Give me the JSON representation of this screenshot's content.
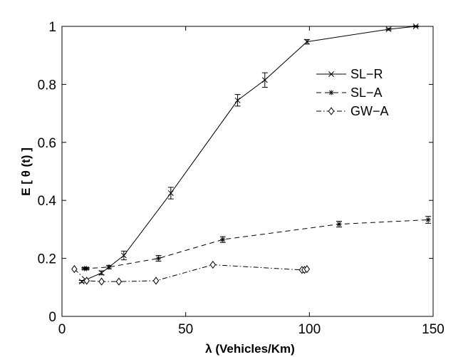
{
  "chart_data": {
    "type": "line",
    "title": "",
    "xlabel": "λ (Vehicles/Km)",
    "ylabel": "E [ θ (t) ]",
    "xlim": [
      0,
      150
    ],
    "ylim": [
      0,
      1
    ],
    "xticks": [
      0,
      50,
      100,
      150
    ],
    "yticks": [
      0,
      0.2,
      0.4,
      0.6,
      0.8,
      1
    ],
    "xtick_labels": [
      "0",
      "50",
      "100",
      "150"
    ],
    "ytick_labels": [
      "0",
      "0.2",
      "0.4",
      "0.6",
      "0.8",
      "1"
    ],
    "grid": false,
    "legend_position": "upper-right",
    "series": [
      {
        "name": "SL−R",
        "line_style": "solid",
        "marker": "x",
        "x": [
          8,
          16,
          25,
          44,
          71,
          82,
          99,
          132,
          143
        ],
        "y": [
          0.12,
          0.15,
          0.21,
          0.425,
          0.745,
          0.815,
          0.947,
          0.99,
          1.0
        ],
        "error": [
          0.004,
          0.007,
          0.015,
          0.02,
          0.02,
          0.025,
          0.008,
          0.003,
          0.002
        ]
      },
      {
        "name": "SL−A",
        "line_style": "dashed",
        "marker": "*",
        "x": [
          9,
          10,
          19,
          39,
          65,
          112,
          148
        ],
        "y": [
          0.165,
          0.165,
          0.17,
          0.2,
          0.265,
          0.318,
          0.333
        ],
        "error": [
          0.003,
          0.003,
          0.006,
          0.01,
          0.01,
          0.01,
          0.012
        ]
      },
      {
        "name": "GW−A",
        "line_style": "dashdot",
        "marker": "diamond",
        "x": [
          5,
          10,
          16,
          23,
          38,
          61,
          97,
          98,
          99
        ],
        "y": [
          0.163,
          0.123,
          0.12,
          0.12,
          0.123,
          0.178,
          0.16,
          0.16,
          0.163
        ],
        "error": []
      }
    ]
  }
}
